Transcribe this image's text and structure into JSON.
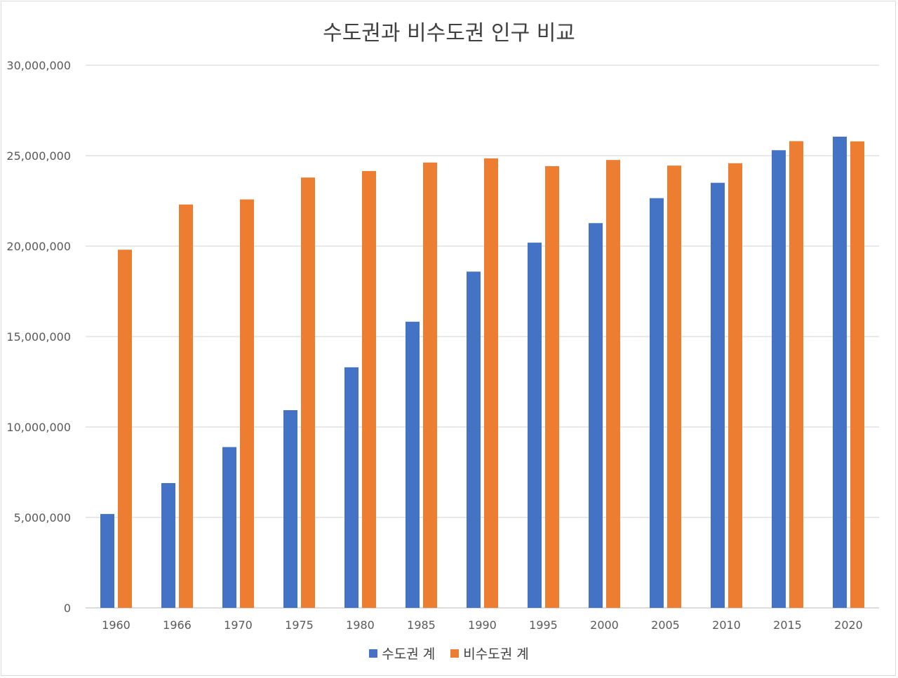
{
  "chart_data": {
    "type": "bar",
    "title": "수도권과 비수도권 인구 비교",
    "xlabel": "",
    "ylabel": "",
    "ylim": [
      0,
      30000000
    ],
    "y_ticks": [
      "0",
      "5,000,000",
      "10,000,000",
      "15,000,000",
      "20,000,000",
      "25,000,000",
      "30,000,000"
    ],
    "grid": true,
    "legend_position": "bottom",
    "categories": [
      "1960",
      "1966",
      "1970",
      "1975",
      "1980",
      "1985",
      "1990",
      "1995",
      "2000",
      "2005",
      "2010",
      "2015",
      "2020"
    ],
    "series": [
      {
        "name": "수도권 계",
        "color": "#4472c4",
        "values": [
          5190000,
          6900000,
          8890000,
          10930000,
          13300000,
          15820000,
          18590000,
          20190000,
          21270000,
          22650000,
          23500000,
          25300000,
          26050000
        ]
      },
      {
        "name": "비수도권 계",
        "color": "#ed7d31",
        "values": [
          19800000,
          22300000,
          22580000,
          23790000,
          24150000,
          24620000,
          24850000,
          24420000,
          24760000,
          24450000,
          24580000,
          25800000,
          25790000
        ]
      }
    ]
  }
}
